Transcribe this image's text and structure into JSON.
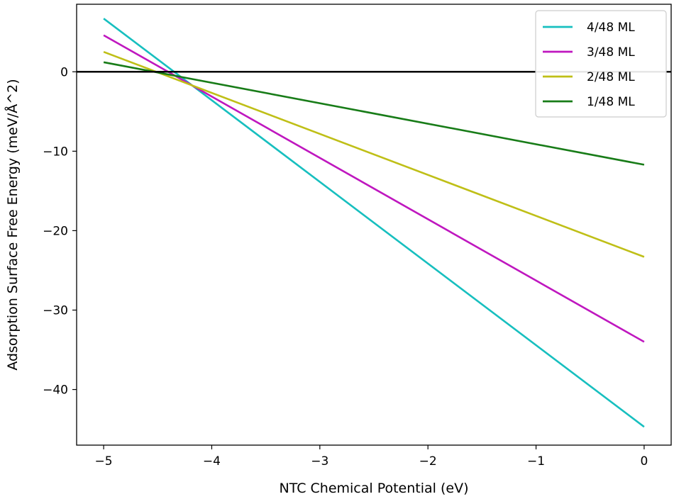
{
  "chart_data": {
    "type": "line",
    "title": "",
    "xlabel": "NTC Chemical Potential (eV)",
    "ylabel": "Adsorption Surface Free Energy (meV/Å^2)",
    "xlim": [
      -5.25,
      0.25
    ],
    "ylim": [
      -47,
      8.5
    ],
    "xticks": [
      -5,
      -4,
      -3,
      -2,
      -1,
      0
    ],
    "yticks": [
      -40,
      -30,
      -20,
      -10,
      0
    ],
    "xtick_labels": [
      "−5",
      "−4",
      "−3",
      "−2",
      "−1",
      "0"
    ],
    "ytick_labels": [
      "−40",
      "−30",
      "−20",
      "−10",
      "0"
    ],
    "grid": false,
    "zero_line": 0,
    "legend_position": "top-right",
    "series": [
      {
        "name": "4/48 ML",
        "color": "#17bfbf",
        "x": [
          -5,
          0
        ],
        "y": [
          6.7,
          -44.7
        ]
      },
      {
        "name": "3/48 ML",
        "color": "#bf17bf",
        "x": [
          -5,
          0
        ],
        "y": [
          4.6,
          -34.0
        ]
      },
      {
        "name": "2/48 ML",
        "color": "#bfbf17",
        "x": [
          -5,
          0
        ],
        "y": [
          2.5,
          -23.3
        ]
      },
      {
        "name": "1/48 ML",
        "color": "#187c18",
        "x": [
          -5,
          0
        ],
        "y": [
          1.2,
          -11.7
        ]
      }
    ]
  }
}
